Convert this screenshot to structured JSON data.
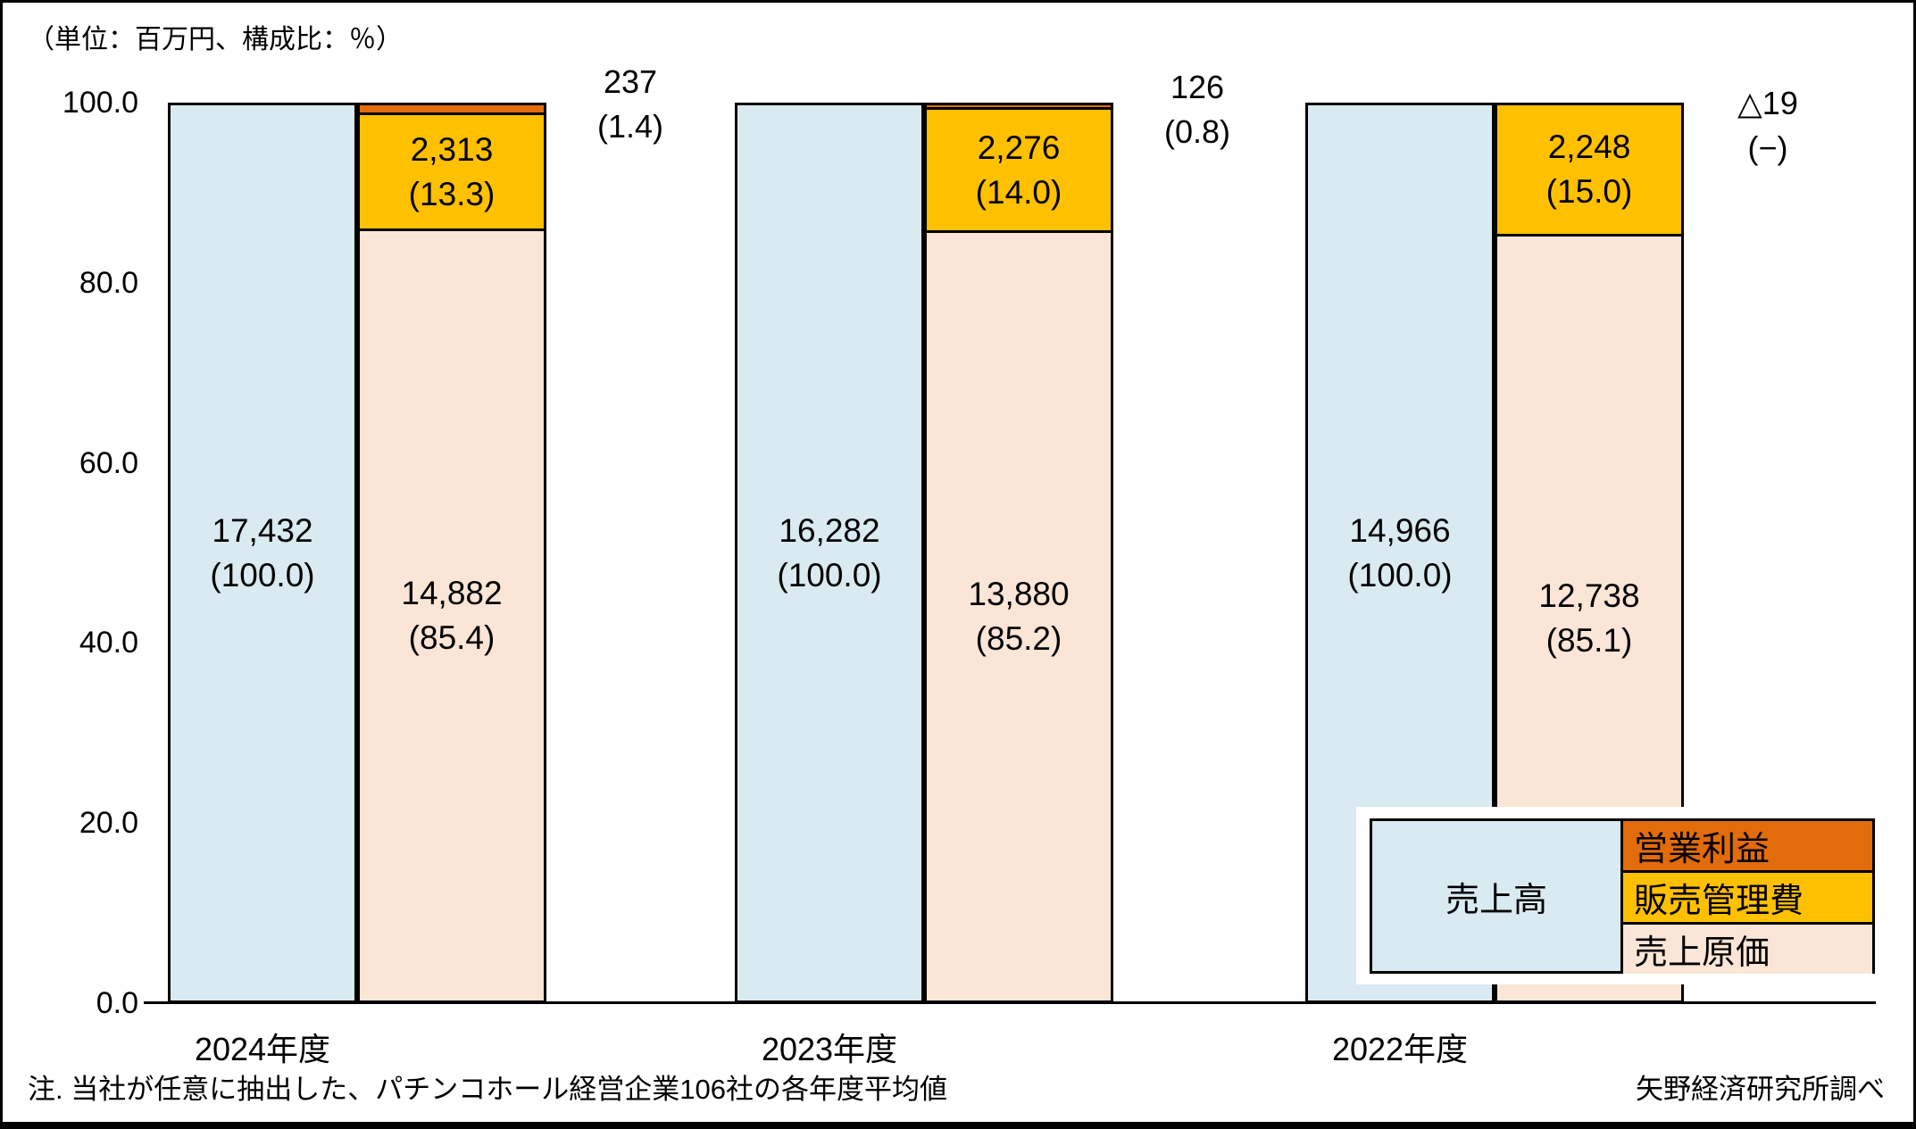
{
  "chart_data": {
    "type": "bar",
    "title": "",
    "unit_note": "（単位：百万円、構成比：％）",
    "grid": "off",
    "legend_position": "bottom-right-overlay",
    "y_axis": {
      "min": 0,
      "max": 100,
      "ticks": [
        {
          "label": "100.0",
          "value": 100
        },
        {
          "label": "80.0",
          "value": 80
        },
        {
          "label": "60.0",
          "value": 60
        },
        {
          "label": "40.0",
          "value": 40
        },
        {
          "label": "20.0",
          "value": 20
        },
        {
          "label": "0.0",
          "value": 0
        }
      ]
    },
    "legend": {
      "sales": "売上高",
      "op": "営業利益",
      "sga": "販売管理費",
      "cogs": "売上原価"
    },
    "colors": {
      "sales": "#D9EAF1",
      "op": "#E26B0A",
      "sga": "#FFC000",
      "cogs": "#FBE5D6",
      "border": "#000000"
    },
    "categories": [
      "2024年度",
      "2023年度",
      "2022年度"
    ],
    "groups": [
      {
        "year": "2024年度",
        "sales": {
          "value": "17,432",
          "share": "(100.0)",
          "pct": 100
        },
        "cogs": {
          "value": "14,882",
          "share": "(85.4)",
          "pct": 85.4
        },
        "sga": {
          "value": "2,313",
          "share": "(13.3)",
          "pct": 13.3
        },
        "op": {
          "value": "237",
          "share": "(1.4)",
          "pct": 1.4
        }
      },
      {
        "year": "2023年度",
        "sales": {
          "value": "16,282",
          "share": "(100.0)",
          "pct": 100
        },
        "cogs": {
          "value": "13,880",
          "share": "(85.2)",
          "pct": 85.2
        },
        "sga": {
          "value": "2,276",
          "share": "(14.0)",
          "pct": 14.0
        },
        "op": {
          "value": "126",
          "share": "(0.8)",
          "pct": 0.8
        }
      },
      {
        "year": "2022年度",
        "sales": {
          "value": "14,966",
          "share": "(100.0)",
          "pct": 100
        },
        "cogs": {
          "value": "12,738",
          "share": "(85.1)",
          "pct": 85.1
        },
        "sga": {
          "value": "2,248",
          "share": "(15.0)",
          "pct": 15.0
        },
        "op": {
          "value": "△19",
          "share": "(−)",
          "pct": 0
        }
      }
    ],
    "note": "注. 当社が任意に抽出した、パチンコホール経営企業106社の各年度平均値",
    "source": "矢野経済研究所調べ"
  }
}
